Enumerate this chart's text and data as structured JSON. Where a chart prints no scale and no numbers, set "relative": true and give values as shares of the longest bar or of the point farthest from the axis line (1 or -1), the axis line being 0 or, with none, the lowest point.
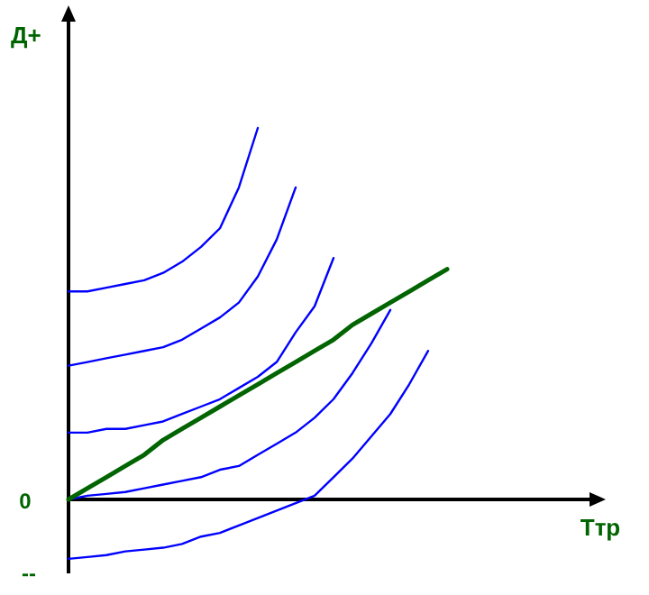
{
  "chart_data": {
    "type": "line",
    "relative": true,
    "ylabel": "Д+",
    "annotations": [
      "Ттр",
      "0",
      "--"
    ],
    "categories": [
      null,
      null,
      null,
      null,
      null,
      null,
      null,
      null,
      null,
      null,
      null,
      null,
      null,
      null,
      null,
      null,
      null,
      null,
      null,
      null,
      null
    ],
    "series": [
      {
        "color": "#0000ff",
        "values": [
          0.56,
          0.56,
          0.57,
          0.58,
          0.59,
          0.61,
          0.64,
          0.68,
          0.73,
          0.84,
          1,
          null,
          null,
          null,
          null,
          null,
          null,
          null,
          null,
          null,
          null
        ]
      },
      {
        "color": "#0000ff",
        "values": [
          0.36,
          0.37,
          0.38,
          0.39,
          0.4,
          0.41,
          0.43,
          0.46,
          0.49,
          0.53,
          0.6,
          0.7,
          0.84,
          null,
          null,
          null,
          null,
          null,
          null,
          null,
          null
        ]
      },
      {
        "color": "#0000ff",
        "values": [
          0.18,
          0.18,
          0.19,
          0.19,
          0.2,
          0.21,
          0.23,
          0.25,
          0.27,
          0.3,
          0.33,
          0.37,
          0.45,
          0.52,
          0.65,
          null,
          null,
          null,
          null,
          null,
          null
        ]
      },
      {
        "color": "#0000ff",
        "values": [
          0,
          0.01,
          0.015,
          0.02,
          0.03,
          0.04,
          0.05,
          0.06,
          0.08,
          0.09,
          0.12,
          0.15,
          0.18,
          0.22,
          0.27,
          0.34,
          0.42,
          0.51,
          null,
          null,
          null
        ]
      },
      {
        "color": "#0000ff",
        "values": [
          -0.16,
          -0.155,
          -0.15,
          -0.14,
          -0.135,
          -0.13,
          -0.12,
          -0.1,
          -0.09,
          -0.07,
          -0.05,
          -0.03,
          -0.01,
          0.01,
          0.06,
          0.11,
          0.17,
          0.23,
          0.31,
          0.4,
          null
        ]
      },
      {
        "color": "#006400",
        "values": [
          0,
          0.03,
          0.06,
          0.09,
          0.12,
          0.16,
          0.19,
          0.22,
          0.25,
          0.28,
          0.31,
          0.34,
          0.37,
          0.4,
          0.43,
          0.47,
          0.5,
          0.53,
          0.56,
          0.59,
          0.62
        ]
      }
    ]
  }
}
